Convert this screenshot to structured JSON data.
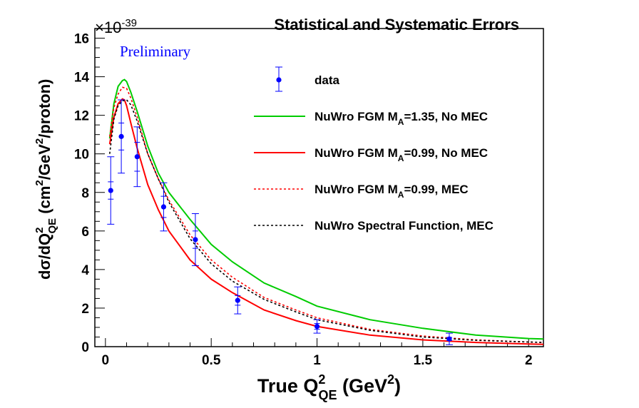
{
  "chart_data": {
    "type": "line",
    "title": "Statistical and Systematic Errors",
    "annotation": "Preliminary",
    "scale_label": {
      "base": "×10",
      "exponent": "-39"
    },
    "xlabel": {
      "main": "True Q",
      "sup": "2",
      "sub": "QE",
      "units_open": " (GeV",
      "units_sup": "2",
      "units_close": ")"
    },
    "ylabel": {
      "text_a": "dσ/dQ",
      "sup_a": "2",
      "sub_a": "QE",
      "text_b": "  (cm",
      "sup_b": "2",
      "text_c": "/GeV",
      "sup_c": "2",
      "text_d": "/proton)"
    },
    "xlim": [
      -0.05,
      2.07
    ],
    "ylim": [
      0,
      16.5
    ],
    "xticks": [
      {
        "value": 0,
        "label": "0"
      },
      {
        "value": 0.5,
        "label": "0.5"
      },
      {
        "value": 1,
        "label": "1"
      },
      {
        "value": 1.5,
        "label": "1.5"
      },
      {
        "value": 2,
        "label": "2"
      }
    ],
    "yticks": [
      {
        "value": 0,
        "label": "0"
      },
      {
        "value": 2,
        "label": "2"
      },
      {
        "value": 4,
        "label": "4"
      },
      {
        "value": 6,
        "label": "6"
      },
      {
        "value": 8,
        "label": "8"
      },
      {
        "value": 10,
        "label": "10"
      },
      {
        "value": 12,
        "label": "12"
      },
      {
        "value": 14,
        "label": "14"
      },
      {
        "value": 16,
        "label": "16"
      }
    ],
    "legend_placement": "top-right",
    "data_points": {
      "name": "data",
      "color": "#0000ff",
      "points": [
        {
          "x": 0.025,
          "y": 8.1,
          "stat": 0.45,
          "tot": 1.75
        },
        {
          "x": 0.075,
          "y": 10.9,
          "stat": 0.7,
          "tot": 1.9
        },
        {
          "x": 0.15,
          "y": 9.85,
          "stat": 0.75,
          "tot": 1.55
        },
        {
          "x": 0.275,
          "y": 7.25,
          "stat": 0.55,
          "tot": 1.25
        },
        {
          "x": 0.425,
          "y": 5.55,
          "stat": 0.45,
          "tot": 1.35
        },
        {
          "x": 0.625,
          "y": 2.4,
          "stat": 0.25,
          "tot": 0.7
        },
        {
          "x": 1.0,
          "y": 1.05,
          "stat": 0.15,
          "tot": 0.35
        },
        {
          "x": 1.625,
          "y": 0.4,
          "stat": 0.08,
          "tot": 0.3
        }
      ]
    },
    "series": [
      {
        "name": "NuWro FGM M",
        "name_sub": "A",
        "name_rest": "=1.35, No MEC",
        "color": "#00cc00",
        "style": "solid",
        "x": [
          0.02,
          0.04,
          0.06,
          0.08,
          0.09,
          0.1,
          0.12,
          0.15,
          0.2,
          0.25,
          0.3,
          0.4,
          0.5,
          0.6,
          0.75,
          0.9,
          1.0,
          1.25,
          1.5,
          1.75,
          2.0,
          2.07
        ],
        "y": [
          10.8,
          12.6,
          13.5,
          13.8,
          13.85,
          13.75,
          13.2,
          12.2,
          10.4,
          9.0,
          8.0,
          6.6,
          5.3,
          4.4,
          3.3,
          2.6,
          2.1,
          1.4,
          0.95,
          0.6,
          0.42,
          0.4
        ]
      },
      {
        "name": "NuWro FGM M",
        "name_sub": "A",
        "name_rest": "=0.99, No MEC",
        "color": "#ff0000",
        "style": "solid",
        "x": [
          0.02,
          0.04,
          0.06,
          0.08,
          0.09,
          0.1,
          0.12,
          0.15,
          0.2,
          0.25,
          0.3,
          0.4,
          0.5,
          0.6,
          0.75,
          0.9,
          1.0,
          1.25,
          1.5,
          1.75,
          2.0,
          2.07
        ],
        "y": [
          10.5,
          11.9,
          12.6,
          12.85,
          12.8,
          12.5,
          11.6,
          10.3,
          8.4,
          7.1,
          6.0,
          4.5,
          3.5,
          2.8,
          1.9,
          1.35,
          1.05,
          0.6,
          0.35,
          0.22,
          0.14,
          0.12
        ]
      },
      {
        "name": "NuWro FGM M",
        "name_sub": "A",
        "name_rest": "=0.99, MEC",
        "color": "#ff0000",
        "style": "dotted",
        "x": [
          0.02,
          0.04,
          0.06,
          0.08,
          0.1,
          0.12,
          0.15,
          0.2,
          0.25,
          0.3,
          0.4,
          0.5,
          0.6,
          0.75,
          0.9,
          1.0,
          1.25,
          1.5,
          1.75,
          2.0,
          2.07
        ],
        "y": [
          10.9,
          12.4,
          13.1,
          13.45,
          13.4,
          12.9,
          11.9,
          10.0,
          8.7,
          7.6,
          5.8,
          4.5,
          3.6,
          2.55,
          1.9,
          1.5,
          0.9,
          0.55,
          0.35,
          0.24,
          0.22
        ]
      },
      {
        "name": "NuWro Spectral Function, MEC",
        "name_sub": "",
        "name_rest": "",
        "color": "#000000",
        "style": "dotted",
        "x": [
          0.02,
          0.04,
          0.06,
          0.08,
          0.1,
          0.12,
          0.15,
          0.2,
          0.25,
          0.3,
          0.4,
          0.5,
          0.6,
          0.75,
          0.9,
          1.0,
          1.25,
          1.5,
          1.75,
          2.0,
          2.07
        ],
        "y": [
          10.0,
          11.8,
          12.5,
          12.75,
          12.8,
          12.55,
          11.7,
          10.0,
          8.7,
          7.5,
          5.6,
          4.3,
          3.4,
          2.45,
          1.8,
          1.4,
          0.85,
          0.5,
          0.33,
          0.24,
          0.22
        ]
      }
    ]
  }
}
